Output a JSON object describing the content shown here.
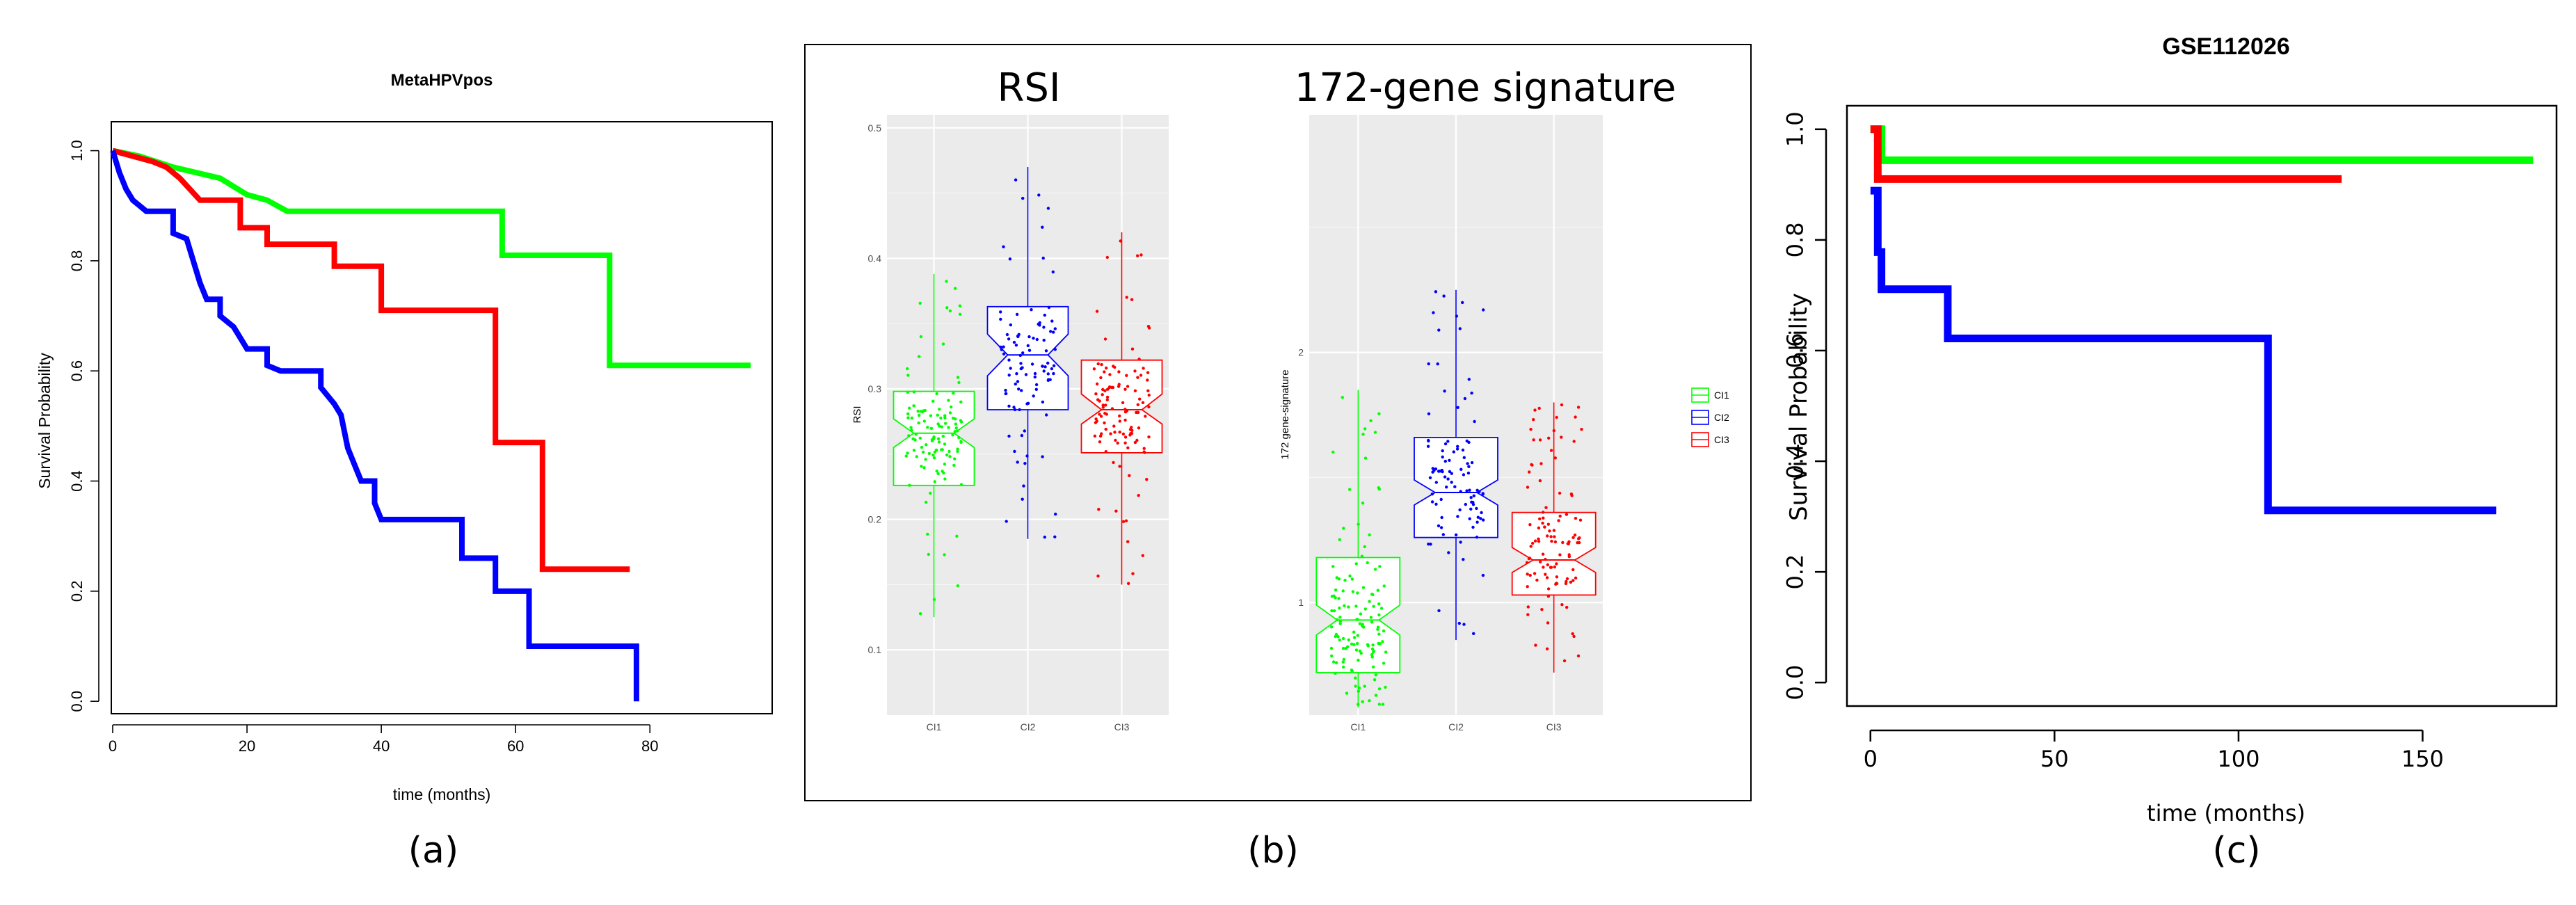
{
  "panel_labels": {
    "a": "(a)",
    "b": "(b)",
    "c": "(c)"
  },
  "chart_data": [
    {
      "id": "a",
      "type": "line",
      "subtype": "kaplan-meier",
      "title": "MetaHPVpos",
      "xlabel": "time (months)",
      "ylabel": "Survival Probability",
      "xlim": [
        0,
        98
      ],
      "ylim": [
        -0.02,
        1.05
      ],
      "xticks": [
        0,
        20,
        40,
        60,
        80
      ],
      "yticks": [
        0.0,
        0.2,
        0.4,
        0.6,
        0.8,
        1.0
      ],
      "ytick_labels": [
        "0.0",
        "0.2",
        "0.4",
        "0.6",
        "0.8",
        "1.0"
      ],
      "series": [
        {
          "name": "green",
          "color": "#00ff00",
          "points": [
            [
              0,
              1.0
            ],
            [
              4,
              0.99
            ],
            [
              9,
              0.97
            ],
            [
              16,
              0.95
            ],
            [
              20,
              0.92
            ],
            [
              23,
              0.91
            ],
            [
              26,
              0.89
            ],
            [
              58,
              0.89
            ],
            [
              58,
              0.81
            ],
            [
              74,
              0.81
            ],
            [
              74,
              0.61
            ],
            [
              95,
              0.61
            ]
          ]
        },
        {
          "name": "red",
          "color": "#ff0000",
          "points": [
            [
              0,
              1.0
            ],
            [
              6,
              0.98
            ],
            [
              8,
              0.97
            ],
            [
              10,
              0.95
            ],
            [
              13,
              0.91
            ],
            [
              19,
              0.91
            ],
            [
              19,
              0.86
            ],
            [
              23,
              0.86
            ],
            [
              23,
              0.83
            ],
            [
              33,
              0.83
            ],
            [
              33,
              0.79
            ],
            [
              40,
              0.79
            ],
            [
              40,
              0.71
            ],
            [
              57,
              0.71
            ],
            [
              57,
              0.47
            ],
            [
              64,
              0.47
            ],
            [
              64,
              0.24
            ],
            [
              77,
              0.24
            ]
          ]
        },
        {
          "name": "blue",
          "color": "#0000ff",
          "points": [
            [
              0,
              1.0
            ],
            [
              1,
              0.96
            ],
            [
              2,
              0.93
            ],
            [
              3,
              0.91
            ],
            [
              4,
              0.9
            ],
            [
              5,
              0.89
            ],
            [
              9,
              0.89
            ],
            [
              9,
              0.85
            ],
            [
              11,
              0.84
            ],
            [
              12,
              0.8
            ],
            [
              13,
              0.76
            ],
            [
              14,
              0.73
            ],
            [
              16,
              0.73
            ],
            [
              16,
              0.7
            ],
            [
              18,
              0.68
            ],
            [
              20,
              0.64
            ],
            [
              23,
              0.64
            ],
            [
              23,
              0.61
            ],
            [
              25,
              0.6
            ],
            [
              31,
              0.6
            ],
            [
              31,
              0.57
            ],
            [
              33,
              0.54
            ],
            [
              34,
              0.52
            ],
            [
              35,
              0.46
            ],
            [
              36,
              0.43
            ],
            [
              37,
              0.4
            ],
            [
              39,
              0.4
            ],
            [
              39,
              0.36
            ],
            [
              40,
              0.33
            ],
            [
              52,
              0.33
            ],
            [
              52,
              0.26
            ],
            [
              57,
              0.26
            ],
            [
              57,
              0.2
            ],
            [
              62,
              0.2
            ],
            [
              62,
              0.1
            ],
            [
              78,
              0.1
            ],
            [
              78,
              0.0
            ]
          ]
        }
      ]
    },
    {
      "id": "b1",
      "type": "box",
      "title": "RSI",
      "ylabel": "RSI",
      "categories": [
        "CI1",
        "CI2",
        "CI3"
      ],
      "ylim": [
        0.05,
        0.51
      ],
      "yticks": [
        0.1,
        0.2,
        0.3,
        0.4,
        0.5
      ],
      "ytick_labels": [
        "0.1",
        "0.2",
        "0.3",
        "0.4",
        "0.5"
      ],
      "series": [
        {
          "name": "CI1",
          "color": "#00ff00",
          "q1": 0.226,
          "median": 0.266,
          "q3": 0.298,
          "notch": [
            0.255,
            0.277
          ],
          "whisker_low": 0.125,
          "whisker_high": 0.388,
          "n_points": 120
        },
        {
          "name": "CI2",
          "color": "#0000ff",
          "q1": 0.284,
          "median": 0.326,
          "q3": 0.363,
          "notch": [
            0.31,
            0.342
          ],
          "whisker_low": 0.185,
          "whisker_high": 0.47,
          "n_points": 100
        },
        {
          "name": "CI3",
          "color": "#ff0000",
          "q1": 0.251,
          "median": 0.284,
          "q3": 0.322,
          "notch": [
            0.273,
            0.296
          ],
          "whisker_low": 0.15,
          "whisker_high": 0.42,
          "n_points": 120
        }
      ]
    },
    {
      "id": "b2",
      "type": "box",
      "title": "172-gene signature",
      "ylabel": "172 gene-signature",
      "categories": [
        "CI1",
        "CI2",
        "CI3"
      ],
      "ylim": [
        0.55,
        2.95
      ],
      "yticks": [
        1,
        2
      ],
      "ytick_labels": [
        "1",
        "2"
      ],
      "legend": {
        "position": "right",
        "entries": [
          "CI1",
          "CI2",
          "CI3"
        ]
      },
      "series": [
        {
          "name": "CI1",
          "color": "#00ff00",
          "q1": 0.72,
          "median": 0.93,
          "q3": 1.18,
          "notch": [
            0.87,
            0.99
          ],
          "whisker_low": 0.58,
          "whisker_high": 1.85,
          "n_points": 130
        },
        {
          "name": "CI2",
          "color": "#0000ff",
          "q1": 1.26,
          "median": 1.44,
          "q3": 1.66,
          "notch": [
            1.39,
            1.49
          ],
          "whisker_low": 0.85,
          "whisker_high": 2.25,
          "n_points": 100
        },
        {
          "name": "CI3",
          "color": "#ff0000",
          "q1": 1.03,
          "median": 1.17,
          "q3": 1.36,
          "notch": [
            1.12,
            1.22
          ],
          "whisker_low": 0.72,
          "whisker_high": 1.8,
          "n_points": 110
        }
      ]
    },
    {
      "id": "c",
      "type": "line",
      "subtype": "kaplan-meier",
      "title": "GSE112026",
      "xlabel": "time (months)",
      "ylabel": "Survival Probability",
      "xlim": [
        -6,
        186
      ],
      "ylim": [
        -0.04,
        1.04
      ],
      "xticks": [
        0,
        50,
        100,
        150
      ],
      "yticks": [
        0.0,
        0.2,
        0.4,
        0.6,
        0.8,
        1.0
      ],
      "ytick_labels": [
        "0.0",
        "0.2",
        "0.4",
        "0.6",
        "0.8",
        "1.0"
      ],
      "series": [
        {
          "name": "green",
          "color": "#00ff00",
          "points": [
            [
              0,
              1.0
            ],
            [
              3,
              1.0
            ],
            [
              3,
              0.944
            ],
            [
              180,
              0.944
            ]
          ]
        },
        {
          "name": "red",
          "color": "#ff0000",
          "points": [
            [
              0,
              1.0
            ],
            [
              2,
              1.0
            ],
            [
              2,
              0.91
            ],
            [
              128,
              0.91
            ]
          ]
        },
        {
          "name": "blue",
          "color": "#0000ff",
          "points": [
            [
              0,
              0.889
            ],
            [
              2,
              0.889
            ],
            [
              2,
              0.778
            ],
            [
              3,
              0.778
            ],
            [
              3,
              0.711
            ],
            [
              21,
              0.711
            ],
            [
              21,
              0.622
            ],
            [
              108,
              0.622
            ],
            [
              108,
              0.311
            ],
            [
              170,
              0.311
            ]
          ]
        }
      ]
    }
  ]
}
